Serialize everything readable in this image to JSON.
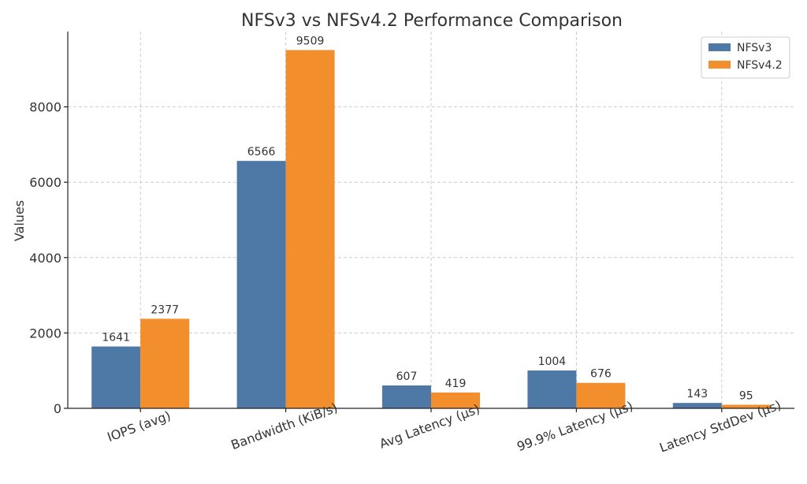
{
  "chart_data": {
    "type": "bar",
    "title": "NFSv3 vs NFSv4.2 Performance Comparison",
    "xlabel": "",
    "ylabel": "Values",
    "categories": [
      "IOPS (avg)",
      "Bandwidth (KiB/s)",
      "Avg Latency (µs)",
      "99.9% Latency (µs)",
      "Latency StdDev (µs)"
    ],
    "series": [
      {
        "name": "NFSv3",
        "color": "#4e79a7",
        "values": [
          1641,
          6566,
          607,
          1004,
          143
        ]
      },
      {
        "name": "NFSv4.2",
        "color": "#f28e2b",
        "values": [
          2377,
          9509,
          419,
          676,
          95
        ]
      }
    ],
    "ylim": [
      0,
      10000
    ],
    "yticks": [
      0,
      2000,
      4000,
      6000,
      8000
    ],
    "grid": true,
    "legend_position": "top-right"
  }
}
